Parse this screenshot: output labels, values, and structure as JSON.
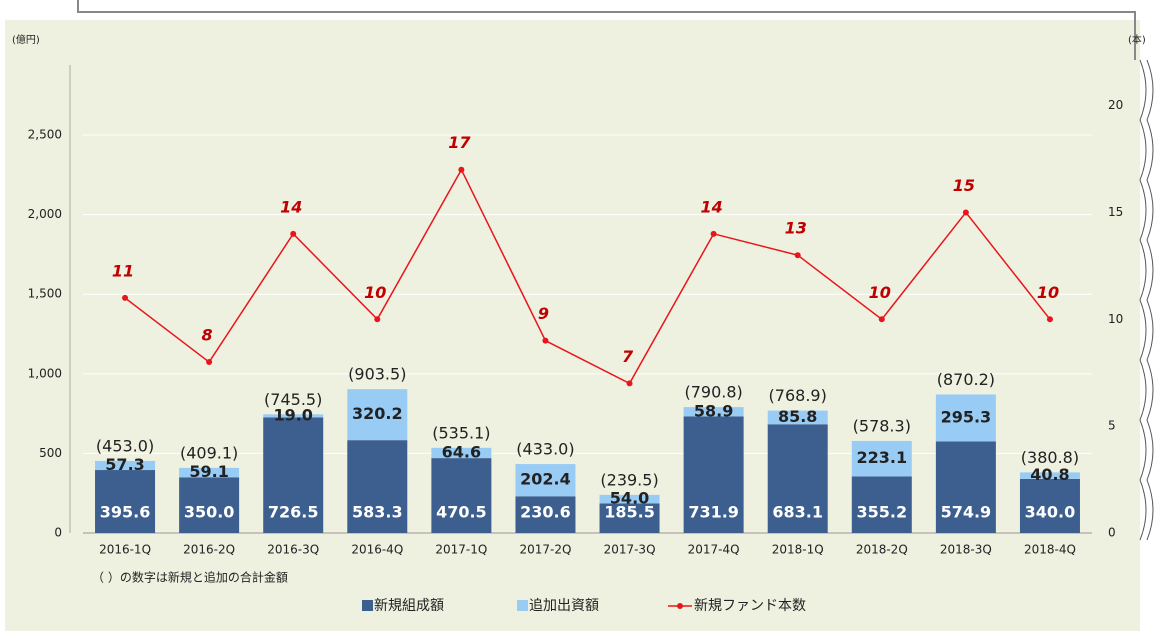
{
  "chart_data": {
    "type": "bar-line",
    "y_label": "(億円)",
    "y2_label": "(本)",
    "note": "（ ）の数字は新規と追加の合計金額",
    "categories": [
      "2016-1Q",
      "2016-2Q",
      "2016-3Q",
      "2016-4Q",
      "2017-1Q",
      "2017-2Q",
      "2017-3Q",
      "2017-4Q",
      "2018-1Q",
      "2018-2Q",
      "2018-3Q",
      "2018-4Q"
    ],
    "series": [
      {
        "name": "新規組成額",
        "color": "#3c5f8f",
        "kind": "bar",
        "values": [
          395.6,
          350.0,
          726.5,
          583.3,
          470.5,
          230.6,
          185.5,
          731.9,
          683.1,
          355.2,
          574.9,
          340.0
        ],
        "value_labels": [
          "395.6",
          "350.0",
          "726.5",
          "583.3",
          "470.5",
          "230.6",
          "185.5",
          "731.9",
          "683.1",
          "355.2",
          "574.9",
          "340.0"
        ]
      },
      {
        "name": "追加出資額",
        "color": "#99ccf5",
        "kind": "bar",
        "values": [
          57.3,
          59.1,
          19.0,
          320.2,
          64.6,
          202.4,
          54.0,
          58.9,
          85.8,
          223.1,
          295.3,
          40.8
        ],
        "value_labels": [
          "57.3",
          "59.1",
          "19.0",
          "320.2",
          "64.6",
          "202.4",
          "54.0",
          "58.9",
          "85.8",
          "223.1",
          "295.3",
          "40.8"
        ]
      },
      {
        "name": "新規ファンド本数",
        "color": "#e8161b",
        "kind": "line",
        "axis": "y2",
        "values": [
          11,
          8,
          14,
          10,
          17,
          9,
          7,
          14,
          13,
          10,
          15,
          10
        ]
      }
    ],
    "total_labels": [
      "(453.0)",
      "(409.1)",
      "(745.5)",
      "(903.5)",
      "(535.1)",
      "(433.0)",
      "(239.5)",
      "(790.8)",
      "(768.9)",
      "(578.3)",
      "(870.2)",
      "(380.8)"
    ],
    "ylim": [
      0,
      2940
    ],
    "yticks": [
      0,
      500,
      {
        "value": 1000,
        "label": "1,000"
      },
      {
        "value": 1500,
        "label": "1,500"
      },
      {
        "value": 2000,
        "label": "2,000"
      },
      {
        "value": 2500,
        "label": "2,500"
      }
    ],
    "y2lim": [
      0,
      21.9
    ],
    "y2ticks": [
      0,
      5,
      10,
      15,
      20
    ],
    "grid": true
  }
}
